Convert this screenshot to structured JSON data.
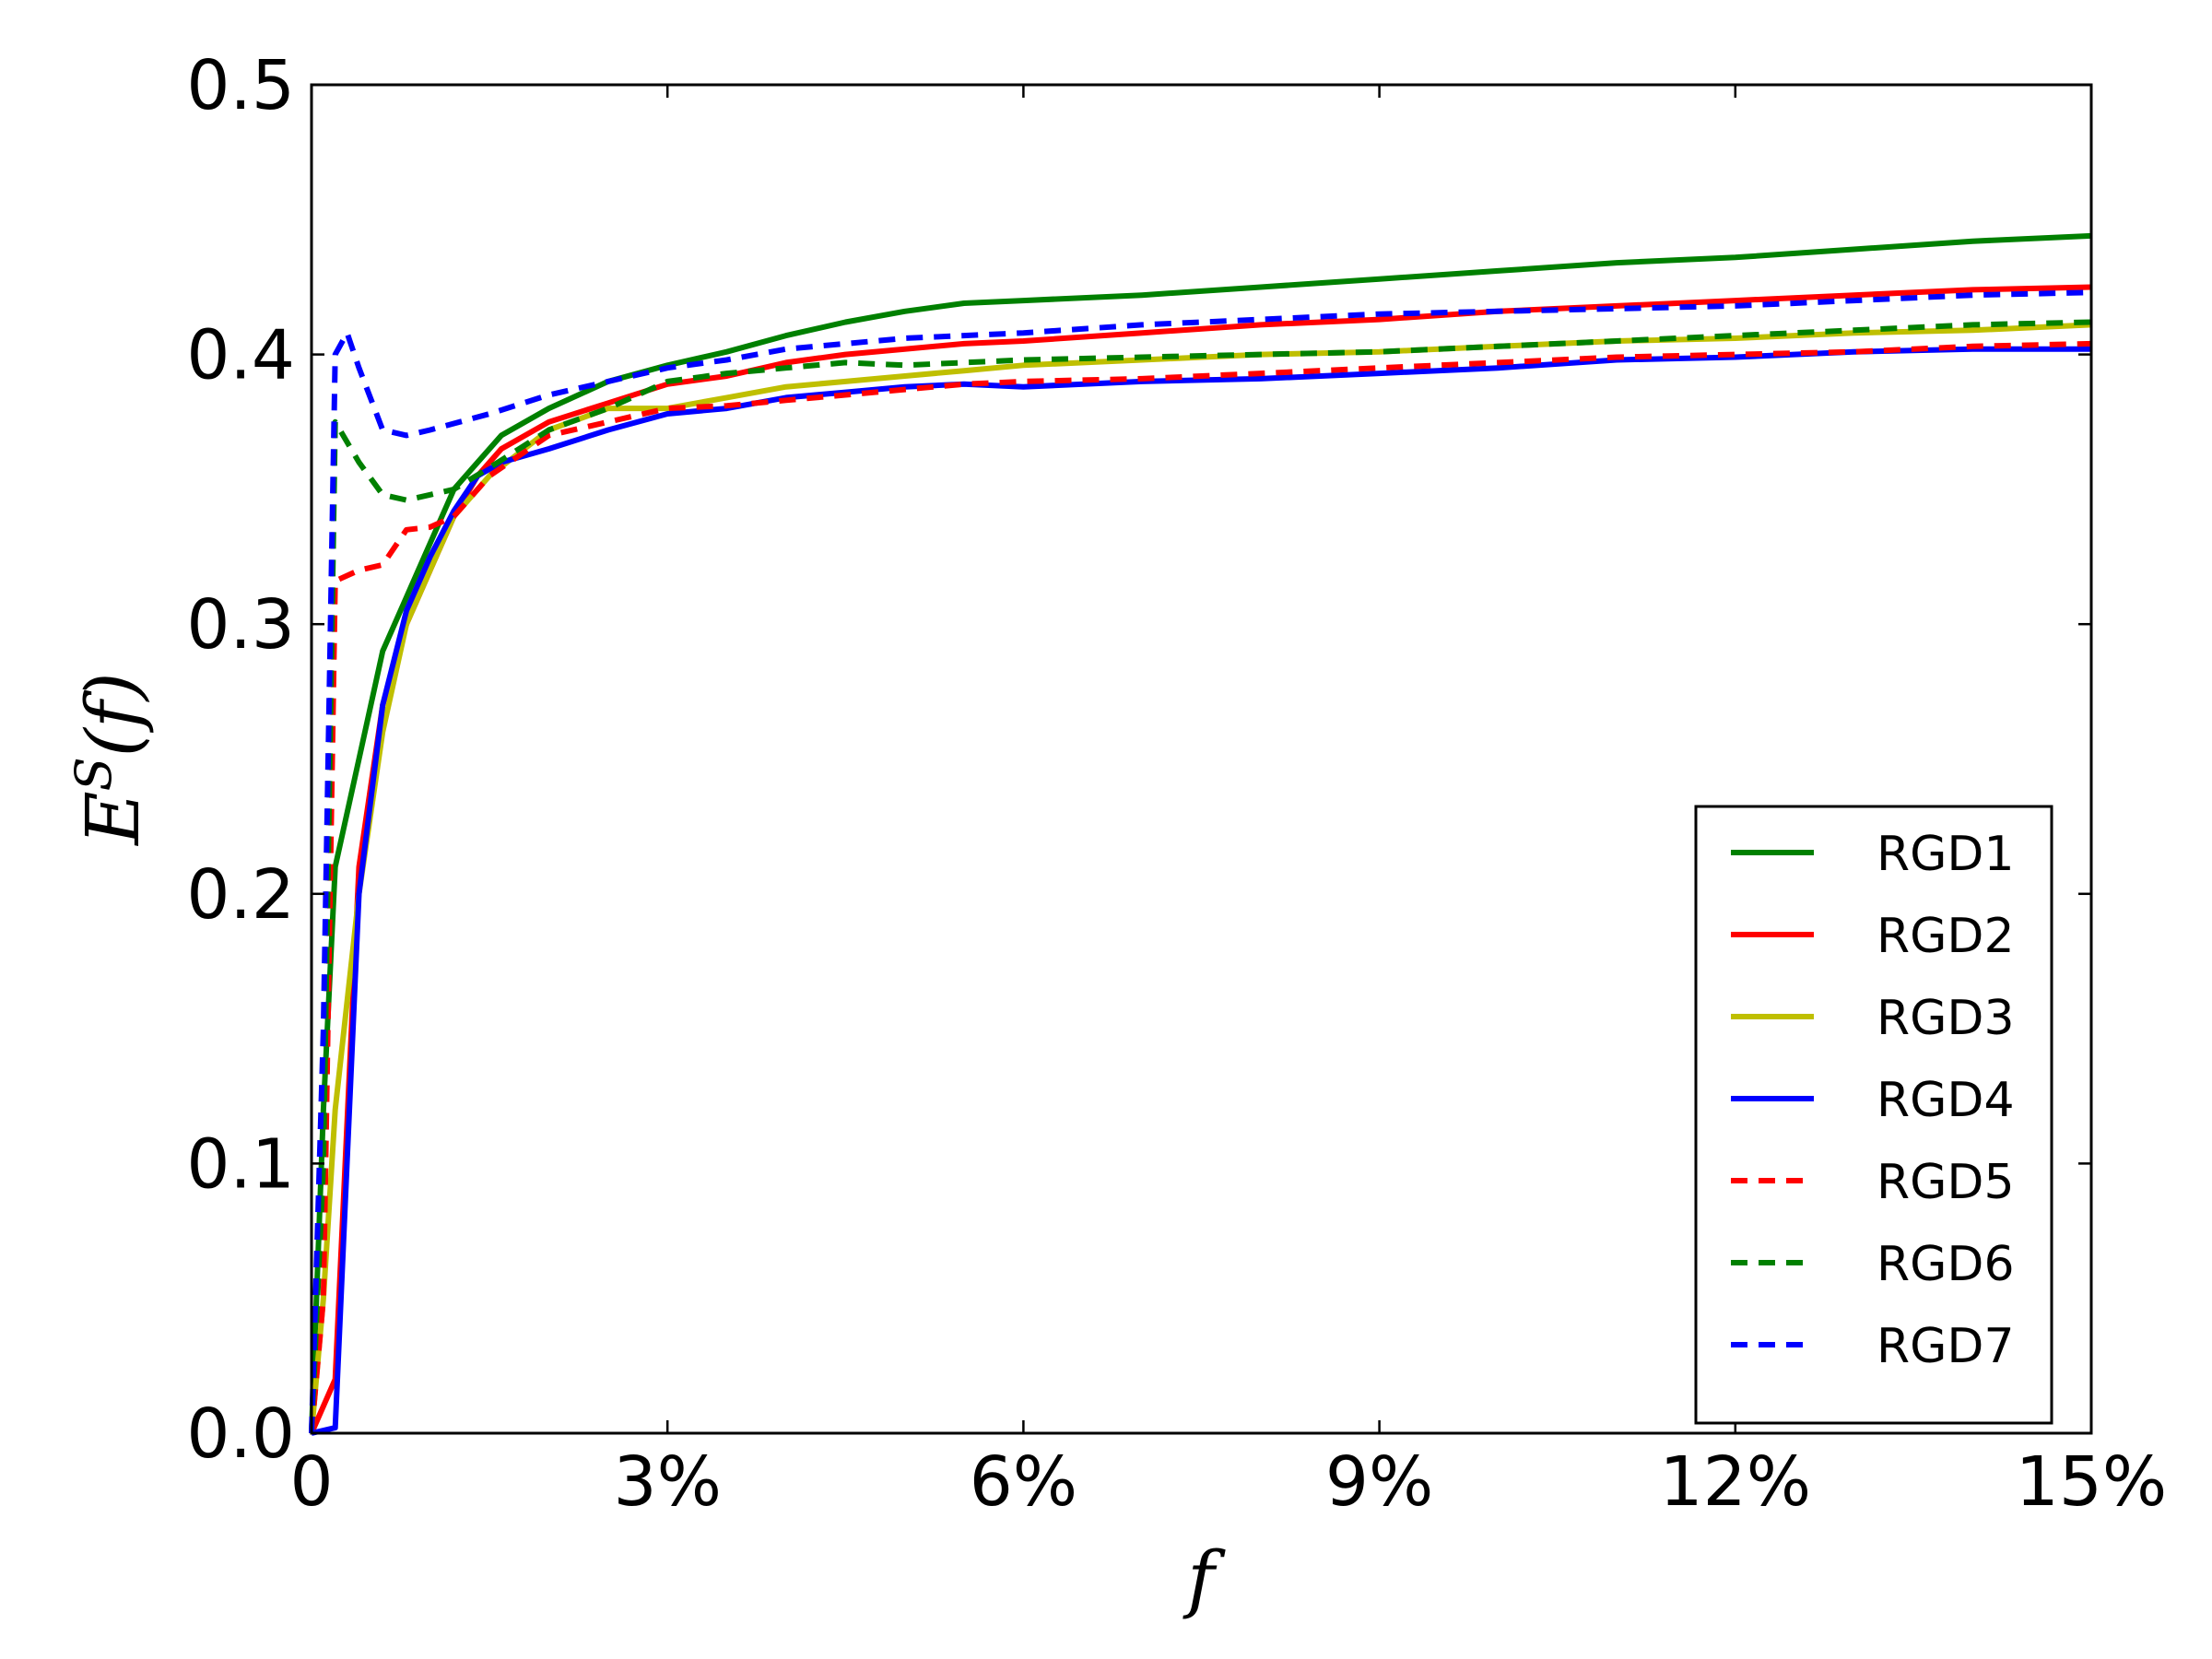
{
  "chart_data": {
    "type": "line",
    "xlabel": "f",
    "ylabel": "E^S(f)",
    "xlim": [
      0,
      15
    ],
    "ylim": [
      0,
      0.5
    ],
    "x_ticks": [
      {
        "value": 0,
        "label": "0"
      },
      {
        "value": 3,
        "label": "3%"
      },
      {
        "value": 6,
        "label": "6%"
      },
      {
        "value": 9,
        "label": "9%"
      },
      {
        "value": 12,
        "label": "12%"
      },
      {
        "value": 15,
        "label": "15%"
      }
    ],
    "y_ticks": [
      {
        "value": 0,
        "label": "0.0"
      },
      {
        "value": 0.1,
        "label": "0.1"
      },
      {
        "value": 0.2,
        "label": "0.2"
      },
      {
        "value": 0.3,
        "label": "0.3"
      },
      {
        "value": 0.4,
        "label": "0.4"
      },
      {
        "value": 0.5,
        "label": "0.5"
      }
    ],
    "grid": false,
    "legend_position": "lower-right",
    "series": [
      {
        "name": "RGD1",
        "color": "#008000",
        "dash": "solid",
        "points": [
          [
            0,
            0
          ],
          [
            0.1,
            0.12
          ],
          [
            0.2,
            0.21
          ],
          [
            0.4,
            0.25
          ],
          [
            0.6,
            0.29
          ],
          [
            0.8,
            0.31
          ],
          [
            1.0,
            0.33
          ],
          [
            1.2,
            0.35
          ],
          [
            1.4,
            0.36
          ],
          [
            1.6,
            0.37
          ],
          [
            2.0,
            0.38
          ],
          [
            2.5,
            0.39
          ],
          [
            3.0,
            0.396
          ],
          [
            3.5,
            0.401
          ],
          [
            4.0,
            0.407
          ],
          [
            4.5,
            0.412
          ],
          [
            5.0,
            0.416
          ],
          [
            5.5,
            0.419
          ],
          [
            6.0,
            0.42
          ],
          [
            7.0,
            0.422
          ],
          [
            8.0,
            0.425
          ],
          [
            9.0,
            0.428
          ],
          [
            10.0,
            0.431
          ],
          [
            11.0,
            0.434
          ],
          [
            12.0,
            0.436
          ],
          [
            13.0,
            0.439
          ],
          [
            14.0,
            0.442
          ],
          [
            15.0,
            0.444
          ]
        ]
      },
      {
        "name": "RGD2",
        "color": "#ff0000",
        "dash": "solid",
        "points": [
          [
            0,
            0
          ],
          [
            0.2,
            0.02
          ],
          [
            0.4,
            0.21
          ],
          [
            0.6,
            0.27
          ],
          [
            0.8,
            0.3
          ],
          [
            1.0,
            0.32
          ],
          [
            1.2,
            0.34
          ],
          [
            1.4,
            0.355
          ],
          [
            1.6,
            0.365
          ],
          [
            2.0,
            0.375
          ],
          [
            2.5,
            0.382
          ],
          [
            3.0,
            0.389
          ],
          [
            3.5,
            0.392
          ],
          [
            4.0,
            0.397
          ],
          [
            4.5,
            0.4
          ],
          [
            5.0,
            0.402
          ],
          [
            5.5,
            0.404
          ],
          [
            6.0,
            0.405
          ],
          [
            7.0,
            0.408
          ],
          [
            8.0,
            0.411
          ],
          [
            9.0,
            0.413
          ],
          [
            10.0,
            0.416
          ],
          [
            11.0,
            0.418
          ],
          [
            12.0,
            0.42
          ],
          [
            13.0,
            0.422
          ],
          [
            14.0,
            0.424
          ],
          [
            15.0,
            0.425
          ]
        ]
      },
      {
        "name": "RGD3",
        "color": "#bfbf00",
        "dash": "solid",
        "points": [
          [
            0,
            0
          ],
          [
            0.1,
            0.05
          ],
          [
            0.2,
            0.12
          ],
          [
            0.4,
            0.2
          ],
          [
            0.6,
            0.26
          ],
          [
            0.8,
            0.3
          ],
          [
            1.0,
            0.32
          ],
          [
            1.2,
            0.34
          ],
          [
            1.5,
            0.355
          ],
          [
            2.0,
            0.372
          ],
          [
            2.5,
            0.38
          ],
          [
            3.0,
            0.38
          ],
          [
            3.5,
            0.384
          ],
          [
            4.0,
            0.388
          ],
          [
            4.5,
            0.39
          ],
          [
            5.0,
            0.392
          ],
          [
            5.5,
            0.394
          ],
          [
            6.0,
            0.396
          ],
          [
            7.0,
            0.398
          ],
          [
            8.0,
            0.4
          ],
          [
            9.0,
            0.401
          ],
          [
            10.0,
            0.403
          ],
          [
            11.0,
            0.405
          ],
          [
            12.0,
            0.406
          ],
          [
            13.0,
            0.408
          ],
          [
            14.0,
            0.409
          ],
          [
            15.0,
            0.411
          ]
        ]
      },
      {
        "name": "RGD4",
        "color": "#0000ff",
        "dash": "solid",
        "points": [
          [
            0,
            0
          ],
          [
            0.2,
            0.002
          ],
          [
            0.4,
            0.2
          ],
          [
            0.6,
            0.27
          ],
          [
            0.8,
            0.305
          ],
          [
            1.0,
            0.325
          ],
          [
            1.2,
            0.342
          ],
          [
            1.4,
            0.355
          ],
          [
            1.6,
            0.36
          ],
          [
            2.0,
            0.365
          ],
          [
            2.5,
            0.372
          ],
          [
            3.0,
            0.378
          ],
          [
            3.5,
            0.38
          ],
          [
            4.0,
            0.384
          ],
          [
            4.5,
            0.386
          ],
          [
            5.0,
            0.388
          ],
          [
            5.5,
            0.389
          ],
          [
            6.0,
            0.388
          ],
          [
            7.0,
            0.39
          ],
          [
            8.0,
            0.391
          ],
          [
            9.0,
            0.393
          ],
          [
            10.0,
            0.395
          ],
          [
            11.0,
            0.398
          ],
          [
            12.0,
            0.399
          ],
          [
            13.0,
            0.401
          ],
          [
            14.0,
            0.402
          ],
          [
            15.0,
            0.402
          ]
        ]
      },
      {
        "name": "RGD5",
        "color": "#ff0000",
        "dash": "dashed",
        "points": [
          [
            0,
            0
          ],
          [
            0.1,
            0.05
          ],
          [
            0.2,
            0.316
          ],
          [
            0.4,
            0.32
          ],
          [
            0.6,
            0.322
          ],
          [
            0.8,
            0.335
          ],
          [
            1.0,
            0.336
          ],
          [
            1.2,
            0.34
          ],
          [
            1.5,
            0.355
          ],
          [
            2.0,
            0.37
          ],
          [
            2.5,
            0.375
          ],
          [
            3.0,
            0.38
          ],
          [
            3.5,
            0.381
          ],
          [
            4.0,
            0.383
          ],
          [
            4.5,
            0.385
          ],
          [
            5.0,
            0.387
          ],
          [
            5.5,
            0.389
          ],
          [
            6.0,
            0.39
          ],
          [
            7.0,
            0.391
          ],
          [
            8.0,
            0.393
          ],
          [
            9.0,
            0.395
          ],
          [
            10.0,
            0.397
          ],
          [
            11.0,
            0.399
          ],
          [
            12.0,
            0.4
          ],
          [
            13.0,
            0.401
          ],
          [
            14.0,
            0.403
          ],
          [
            15.0,
            0.404
          ]
        ]
      },
      {
        "name": "RGD6",
        "color": "#008000",
        "dash": "dashed",
        "points": [
          [
            0,
            0
          ],
          [
            0.1,
            0.1
          ],
          [
            0.2,
            0.375
          ],
          [
            0.4,
            0.36
          ],
          [
            0.6,
            0.348
          ],
          [
            0.8,
            0.346
          ],
          [
            1.0,
            0.348
          ],
          [
            1.2,
            0.35
          ],
          [
            1.5,
            0.358
          ],
          [
            2.0,
            0.372
          ],
          [
            2.5,
            0.38
          ],
          [
            3.0,
            0.39
          ],
          [
            3.5,
            0.393
          ],
          [
            4.0,
            0.395
          ],
          [
            4.5,
            0.397
          ],
          [
            5.0,
            0.396
          ],
          [
            5.5,
            0.397
          ],
          [
            6.0,
            0.398
          ],
          [
            7.0,
            0.399
          ],
          [
            8.0,
            0.4
          ],
          [
            9.0,
            0.401
          ],
          [
            10.0,
            0.403
          ],
          [
            11.0,
            0.405
          ],
          [
            12.0,
            0.407
          ],
          [
            13.0,
            0.409
          ],
          [
            14.0,
            0.411
          ],
          [
            15.0,
            0.412
          ]
        ]
      },
      {
        "name": "RGD7",
        "color": "#0000ff",
        "dash": "dashed",
        "points": [
          [
            0,
            0
          ],
          [
            0.1,
            0.15
          ],
          [
            0.2,
            0.4
          ],
          [
            0.3,
            0.408
          ],
          [
            0.4,
            0.395
          ],
          [
            0.6,
            0.372
          ],
          [
            0.8,
            0.37
          ],
          [
            1.0,
            0.372
          ],
          [
            1.5,
            0.378
          ],
          [
            2.0,
            0.385
          ],
          [
            2.5,
            0.39
          ],
          [
            3.0,
            0.395
          ],
          [
            3.5,
            0.398
          ],
          [
            4.0,
            0.402
          ],
          [
            4.5,
            0.404
          ],
          [
            5.0,
            0.406
          ],
          [
            5.5,
            0.407
          ],
          [
            6.0,
            0.408
          ],
          [
            7.0,
            0.411
          ],
          [
            8.0,
            0.413
          ],
          [
            9.0,
            0.415
          ],
          [
            10.0,
            0.416
          ],
          [
            11.0,
            0.417
          ],
          [
            12.0,
            0.418
          ],
          [
            13.0,
            0.42
          ],
          [
            14.0,
            0.422
          ],
          [
            15.0,
            0.423
          ]
        ]
      }
    ]
  }
}
